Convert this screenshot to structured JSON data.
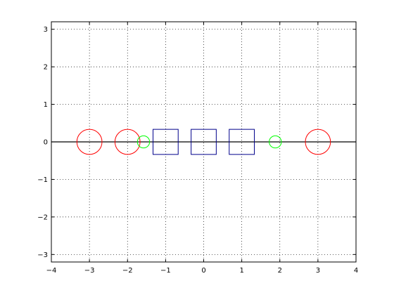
{
  "chart_data": {
    "type": "scatter",
    "title": "",
    "xlabel": "",
    "ylabel": "",
    "xlim": [
      -4,
      4
    ],
    "ylim": [
      -3.2,
      3.2
    ],
    "grid": true,
    "x_ticks": [
      -4,
      -3,
      -2,
      -1,
      0,
      1,
      2,
      3,
      4
    ],
    "x_tick_labels": [
      "−4",
      "−3",
      "−2",
      "−1",
      "0",
      "1",
      "2",
      "3",
      "4"
    ],
    "y_ticks": [
      -3,
      -2,
      -1,
      0,
      1,
      2,
      3
    ],
    "y_tick_labels": [
      "−3",
      "−2",
      "−1",
      "0",
      "1",
      "2",
      "3"
    ],
    "baseline": {
      "y": 0,
      "color": "#000000"
    },
    "series": [
      {
        "name": "red circles",
        "marker": "circle",
        "color": "#ff0000",
        "size": 0.33,
        "points": [
          {
            "x": -3,
            "y": 0
          },
          {
            "x": -2,
            "y": 0
          },
          {
            "x": 3,
            "y": 0
          }
        ]
      },
      {
        "name": "green circles",
        "marker": "circle",
        "color": "#00ff00",
        "size": 0.16,
        "points": [
          {
            "x": -1.58,
            "y": 0
          },
          {
            "x": 1.88,
            "y": 0
          }
        ]
      },
      {
        "name": "blue squares",
        "marker": "square",
        "color": "#00008b",
        "size": 0.33,
        "points": [
          {
            "x": -1,
            "y": 0
          },
          {
            "x": 0,
            "y": 0
          },
          {
            "x": 1,
            "y": 0
          }
        ]
      }
    ]
  }
}
